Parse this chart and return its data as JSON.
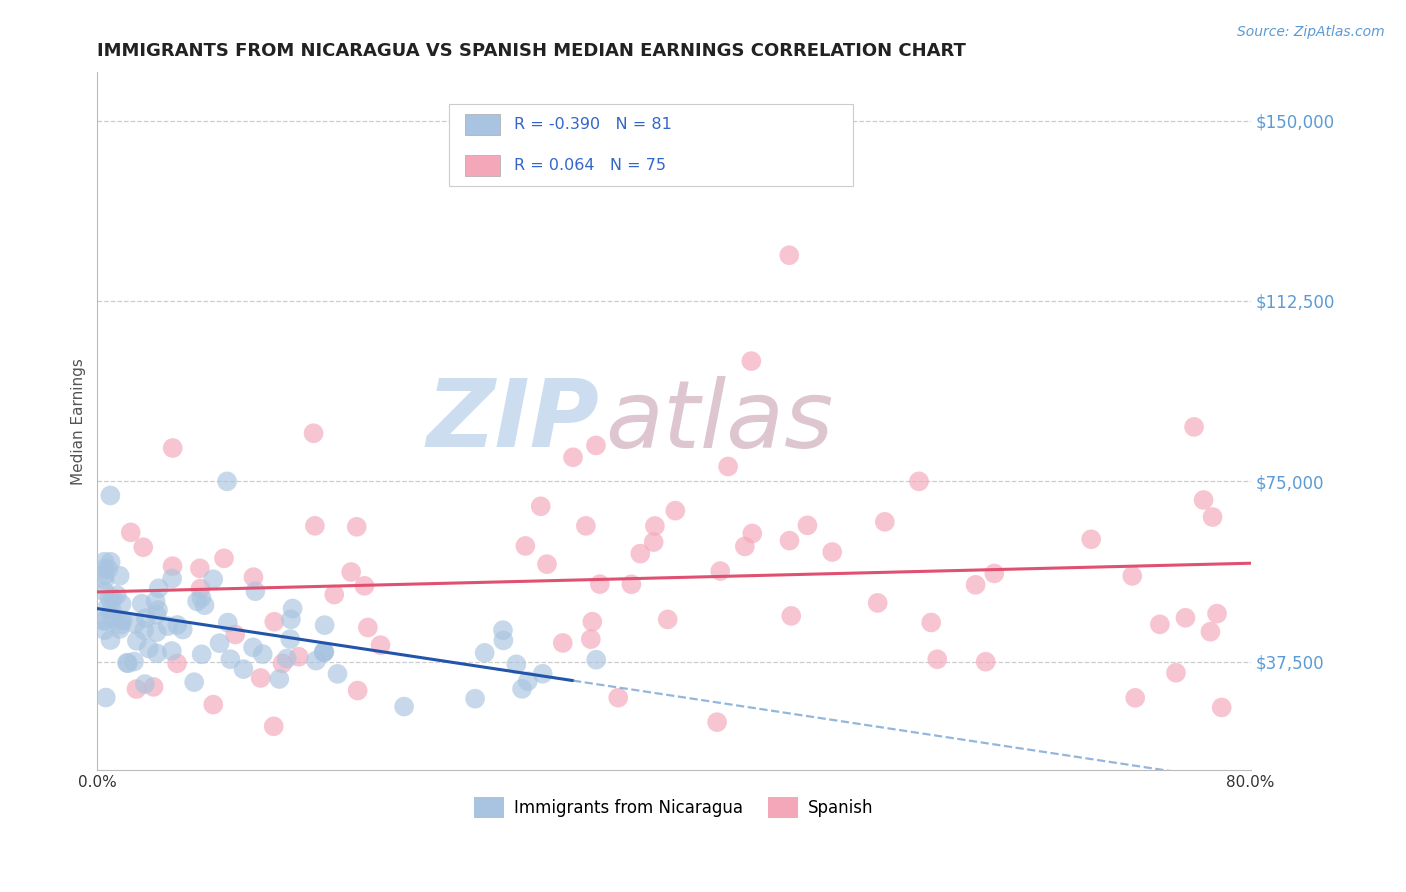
{
  "title": "IMMIGRANTS FROM NICARAGUA VS SPANISH MEDIAN EARNINGS CORRELATION CHART",
  "source_text": "Source: ZipAtlas.com",
  "ylabel": "Median Earnings",
  "xlim": [
    0.0,
    0.8
  ],
  "ylim": [
    15000,
    160000
  ],
  "yticks": [
    37500,
    75000,
    112500,
    150000
  ],
  "ytick_labels": [
    "$37,500",
    "$75,000",
    "$112,500",
    "$150,000"
  ],
  "xticks": [
    0.0,
    0.8
  ],
  "xtick_labels": [
    "0.0%",
    "80.0%"
  ],
  "legend_entries": [
    {
      "label": "Immigrants from Nicaragua",
      "color": "#a8c4e0",
      "marker_color": "#90b8d8",
      "R": "-0.390",
      "N": "81"
    },
    {
      "label": "Spanish",
      "color": "#f4a7b9",
      "marker_color": "#f090aa",
      "R": "0.064",
      "N": "75"
    }
  ],
  "blue_line_color": "#2255aa",
  "blue_line_dash": "#6699cc",
  "pink_line_color": "#e05070",
  "watermark_zip_color": "#c5d8ee",
  "watermark_atlas_color": "#d8bcc8",
  "title_color": "#222222",
  "axis_label_color": "#555555",
  "tick_label_color_y": "#5b9bd5",
  "grid_color": "#c8c8c8"
}
